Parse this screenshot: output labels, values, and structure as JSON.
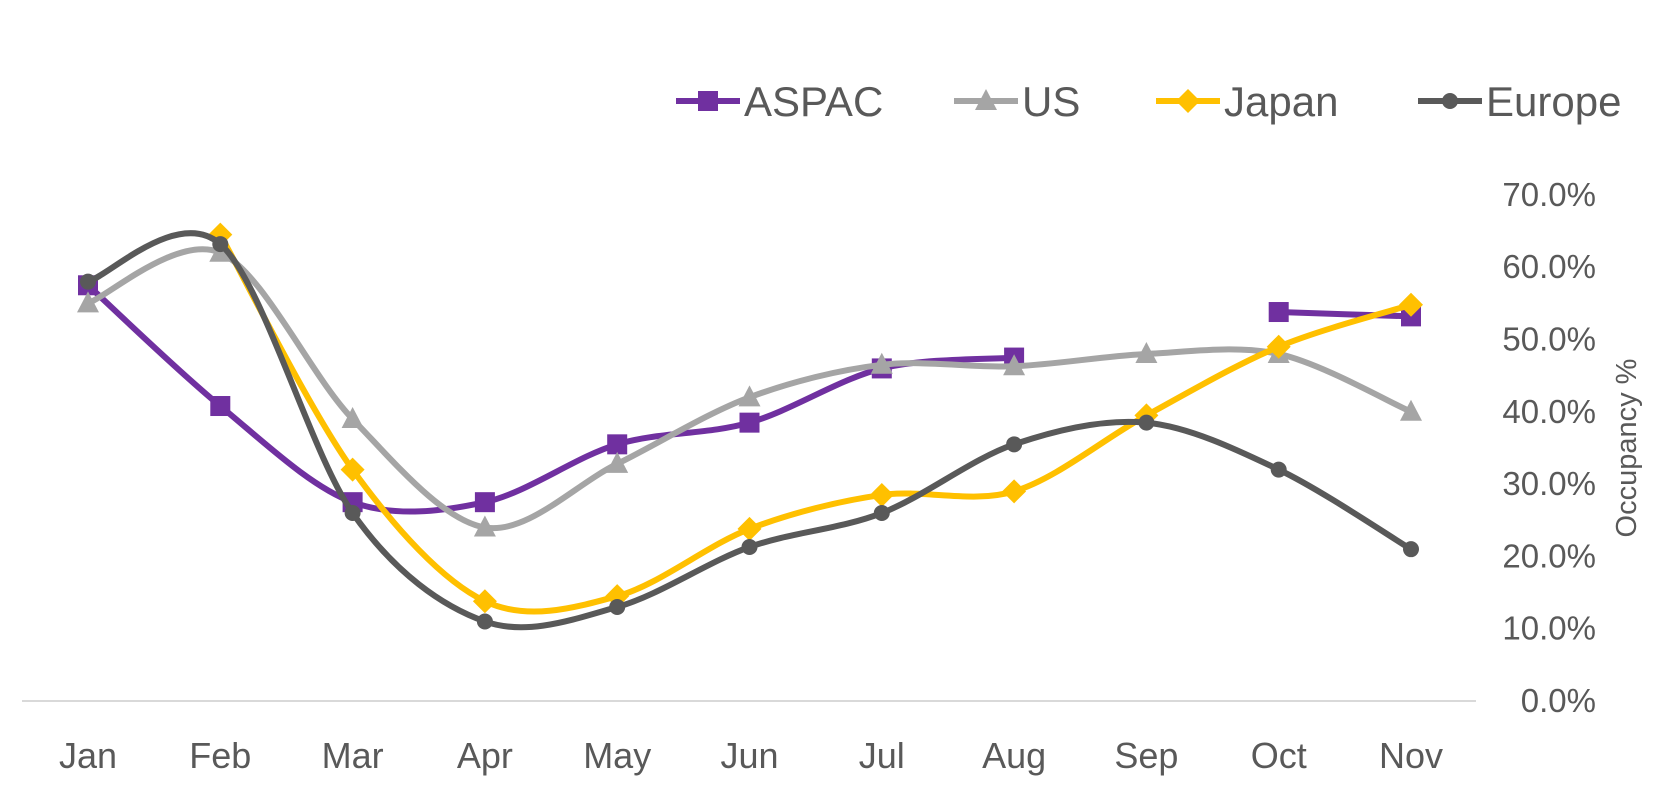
{
  "chart_data": {
    "type": "line",
    "categories": [
      "Jan",
      "Feb",
      "Mar",
      "Apr",
      "May",
      "Jun",
      "Jul",
      "Aug",
      "Sep",
      "Oct",
      "Nov"
    ],
    "series": [
      {
        "name": "ASPAC",
        "color": "#7030A0",
        "marker": "square",
        "values": [
          57.5,
          40.8,
          27.5,
          27.5,
          35.5,
          38.5,
          46.0,
          47.5,
          null,
          53.8,
          53.2
        ]
      },
      {
        "name": "US",
        "color": "#A5A5A5",
        "marker": "triangle",
        "values": [
          55.0,
          62.0,
          39.0,
          24.0,
          32.8,
          42.0,
          46.5,
          46.3,
          48.0,
          48.0,
          40.0
        ]
      },
      {
        "name": "Japan",
        "color": "#FFC000",
        "marker": "diamond",
        "values": [
          null,
          64.5,
          32.0,
          13.8,
          14.5,
          23.8,
          28.5,
          29.0,
          39.5,
          49.0,
          54.8
        ]
      },
      {
        "name": "Europe",
        "color": "#595959",
        "marker": "circle",
        "values": [
          58.0,
          63.2,
          26.0,
          11.0,
          13.0,
          21.3,
          26.0,
          35.5,
          38.5,
          32.0,
          21.0
        ]
      }
    ],
    "ylabel": "Occupancy %",
    "ylim": [
      0,
      70
    ],
    "yticks": [
      "0.0%",
      "10.0%",
      "20.0%",
      "30.0%",
      "40.0%",
      "50.0%",
      "60.0%",
      "70.0%"
    ],
    "y_axis_position": "right",
    "legend_position": "top-right",
    "grid": false,
    "smooth": true
  }
}
